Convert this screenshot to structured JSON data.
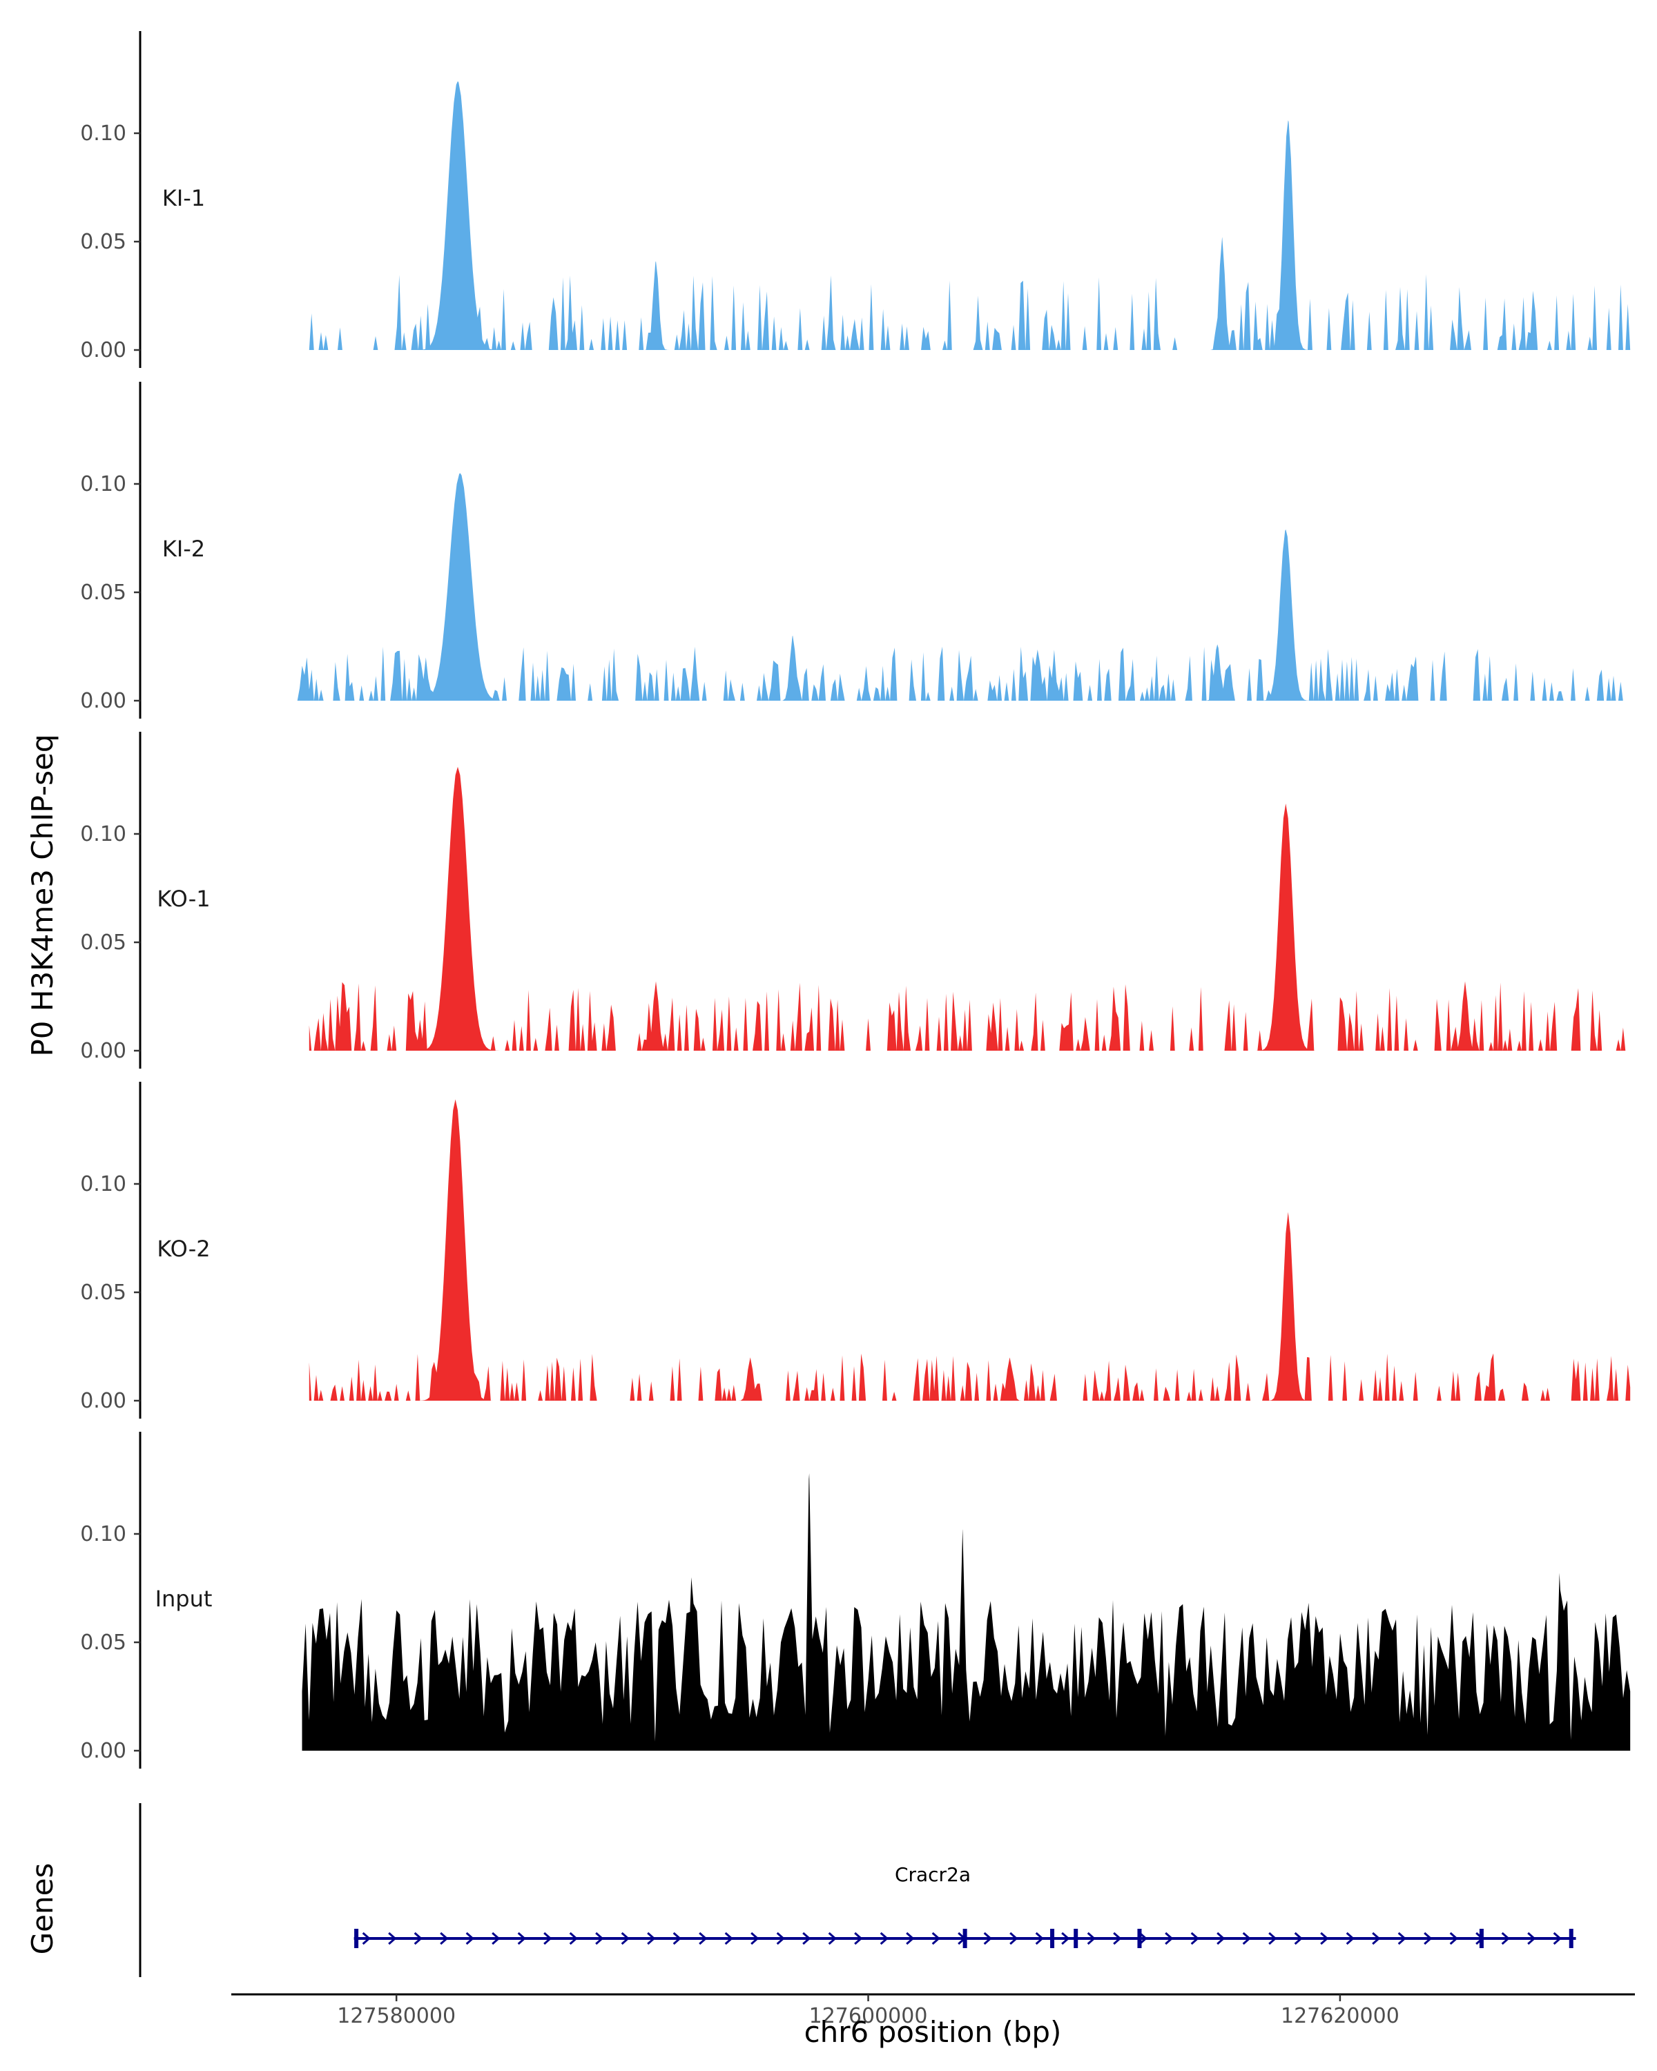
{
  "chart_data": {
    "type": "area",
    "ylabel": "P0 H3K4me3 ChIP-seq",
    "xlabel": "chr6 position (bp)",
    "xlim": [
      127573000,
      127632500
    ],
    "ylim": [
      0,
      0.145
    ],
    "y_ticks": [
      0.0,
      0.05,
      0.1
    ],
    "y_tick_labels": [
      "0.00",
      "0.05",
      "0.10"
    ],
    "x_ticks": [
      127580000,
      127600000,
      127620000
    ],
    "x_tick_labels": [
      "127580000",
      "127600000",
      "127620000"
    ],
    "colors": {
      "KI": "#5DADE8",
      "KO": "#EE2C2C",
      "Input": "#000000",
      "gene": "#00008B"
    },
    "tracks": [
      {
        "name": "KI-1",
        "color": "#5DADE8",
        "peaks": [
          [
            127582600,
            0.124,
            1000
          ],
          [
            127617800,
            0.106,
            500
          ],
          [
            127615000,
            0.052,
            300
          ],
          [
            127591000,
            0.041,
            300
          ]
        ],
        "base_max": 0.035,
        "coverage": 0.5,
        "seed": 11,
        "x_start": 127576000,
        "x_end": 127632300
      },
      {
        "name": "KI-2",
        "color": "#5DADE8",
        "peaks": [
          [
            127582700,
            0.105,
            1100
          ],
          [
            127617700,
            0.079,
            600
          ],
          [
            127596800,
            0.03,
            300
          ],
          [
            127614800,
            0.026,
            300
          ]
        ],
        "base_max": 0.025,
        "coverage": 0.72,
        "seed": 23,
        "x_start": 127575800,
        "x_end": 127632300
      },
      {
        "name": "KO-1",
        "color": "#EE2C2C",
        "peaks": [
          [
            127582600,
            0.131,
            1000
          ],
          [
            127617700,
            0.114,
            700
          ],
          [
            127591000,
            0.032,
            300
          ],
          [
            127625300,
            0.032,
            300
          ]
        ],
        "base_max": 0.032,
        "coverage": 0.55,
        "seed": 37,
        "x_start": 127576300,
        "x_end": 127632300
      },
      {
        "name": "KO-2",
        "color": "#EE2C2C",
        "peaks": [
          [
            127582500,
            0.139,
            900
          ],
          [
            127617800,
            0.087,
            500
          ],
          [
            127595000,
            0.02,
            300
          ],
          [
            127606000,
            0.02,
            300
          ]
        ],
        "base_max": 0.022,
        "coverage": 0.55,
        "seed": 51,
        "x_start": 127576300,
        "x_end": 127632300
      },
      {
        "name": "Input",
        "color": "#000000",
        "peaks": [
          [
            127597500,
            0.128,
            200
          ],
          [
            127604000,
            0.102,
            200
          ],
          [
            127592500,
            0.08,
            200
          ],
          [
            127629300,
            0.082,
            200
          ]
        ],
        "base_max": 0.07,
        "coverage": 1.0,
        "seed": 73,
        "x_start": 127576000,
        "x_end": 127632300
      }
    ],
    "genes_track": {
      "label": "Genes",
      "gene_name": "Cracr2a",
      "start": 127578200,
      "end": 127630000,
      "strand": "+",
      "exons": [
        127578300,
        127604100,
        127607800,
        127608800,
        127611500,
        127626000,
        127629800
      ]
    }
  }
}
